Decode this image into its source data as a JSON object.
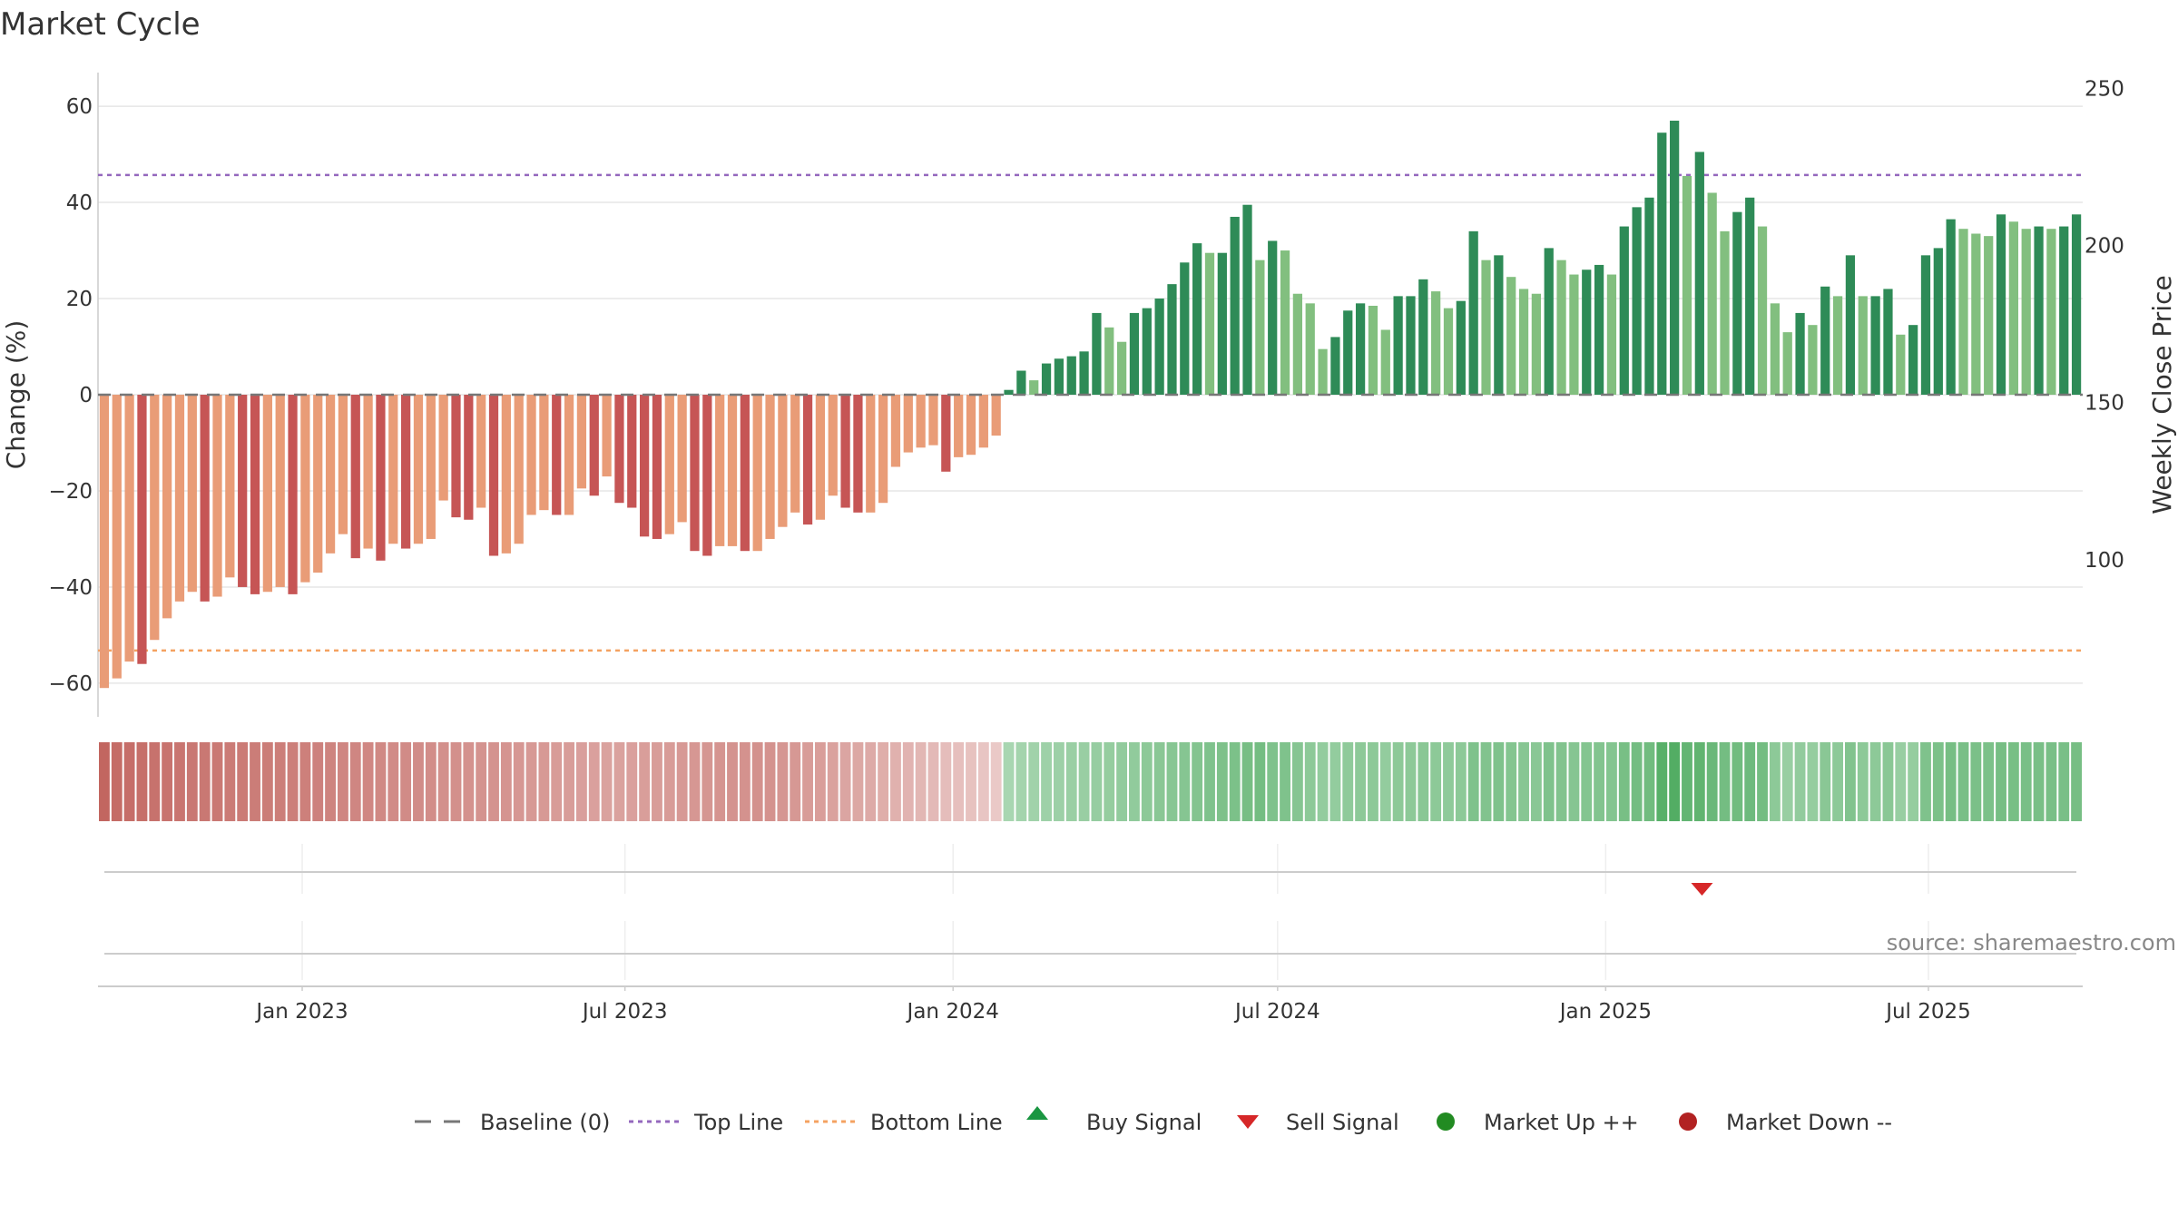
{
  "chart_data": {
    "type": "bar",
    "title": "Market Cycle",
    "ylabel": "Change (%)",
    "y2label": "Weekly Close Price",
    "ylim": [
      -67,
      67
    ],
    "y2lim": [
      50,
      255
    ],
    "yticks": [
      -60,
      -40,
      -20,
      0,
      20,
      40,
      60
    ],
    "y2ticks": [
      100,
      150,
      200,
      250
    ],
    "x_start": "2022-09-12",
    "x_end": "2025-09-22",
    "x_interval_days": 7,
    "xticks": [
      {
        "date": "2023-01-01",
        "label": "Jan 2023"
      },
      {
        "date": "2023-07-01",
        "label": "Jul 2023"
      },
      {
        "date": "2024-01-01",
        "label": "Jan 2024"
      },
      {
        "date": "2024-07-01",
        "label": "Jul 2024"
      },
      {
        "date": "2025-01-01",
        "label": "Jan 2025"
      },
      {
        "date": "2025-07-01",
        "label": "Jul 2025"
      }
    ],
    "top_line": 45.7,
    "bottom_line": -53.2,
    "grid": true,
    "legend_position": "bottom",
    "values": [
      -61,
      -59,
      -55.5,
      -56,
      -51,
      -46.5,
      -43,
      -41,
      -43,
      -42,
      -38,
      -40,
      -41.5,
      -41,
      -40,
      -41.5,
      -39,
      -37,
      -33,
      -29,
      -34,
      -32,
      -34.5,
      -31,
      -32,
      -31,
      -30,
      -22,
      -25.5,
      -26,
      -23.5,
      -33.5,
      -33,
      -31,
      -25,
      -24,
      -25,
      -25,
      -19.5,
      -21,
      -17,
      -22.5,
      -23.5,
      -29.5,
      -30,
      -29,
      -26.5,
      -32.5,
      -33.5,
      -31.5,
      -31.5,
      -32.5,
      -32.5,
      -30,
      -27.5,
      -24.5,
      -27,
      -26,
      -21,
      -23.5,
      -24.5,
      -24.5,
      -22.5,
      -15,
      -12,
      -11,
      -10.5,
      -16,
      -13,
      -12.5,
      -11,
      -8.5,
      1,
      5,
      3,
      6.5,
      7.5,
      8,
      9,
      17,
      14,
      11,
      17,
      18,
      20,
      23,
      27.5,
      31.5,
      29.5,
      29.5,
      37,
      39.5,
      28,
      32,
      30,
      21,
      19,
      9.5,
      12,
      17.5,
      19,
      18.5,
      13.5,
      20.5,
      20.5,
      24,
      21.5,
      18,
      19.5,
      34,
      28,
      29,
      24.5,
      22,
      21,
      30.5,
      28,
      25,
      26,
      27,
      25,
      35,
      39,
      41,
      54.5,
      57,
      45.5,
      50.5,
      42,
      34,
      38,
      41,
      35,
      19,
      13,
      17,
      14.5,
      22.5,
      20.5,
      29,
      20.5,
      20.5,
      22,
      12.5,
      14.5,
      29,
      30.5,
      36.5,
      34.5,
      33.5,
      33,
      37.5,
      36,
      34.5,
      35,
      34.5,
      35,
      37.5
    ],
    "price_shade": [
      0.95,
      0.9,
      0.88,
      0.87,
      0.85,
      0.84,
      0.82,
      0.8,
      0.8,
      0.79,
      0.77,
      0.77,
      0.76,
      0.76,
      0.75,
      0.74,
      0.73,
      0.72,
      0.7,
      0.68,
      0.68,
      0.67,
      0.66,
      0.64,
      0.64,
      0.63,
      0.62,
      0.6,
      0.6,
      0.58,
      0.57,
      0.57,
      0.56,
      0.54,
      0.52,
      0.52,
      0.5,
      0.49,
      0.47,
      0.46,
      0.45,
      0.45,
      0.46,
      0.48,
      0.49,
      0.5,
      0.52,
      0.54,
      0.55,
      0.56,
      0.57,
      0.58,
      0.59,
      0.58,
      0.55,
      0.53,
      0.5,
      0.48,
      0.45,
      0.42,
      0.4,
      0.38,
      0.35,
      0.32,
      0.3,
      0.27,
      0.25,
      0.22,
      0.2,
      0.18,
      0.15,
      0.12,
      0.3,
      0.33,
      0.35,
      0.37,
      0.38,
      0.4,
      0.41,
      0.43,
      0.44,
      0.46,
      0.47,
      0.5,
      0.52,
      0.54,
      0.55,
      0.57,
      0.6,
      0.61,
      0.62,
      0.66,
      0.68,
      0.6,
      0.6,
      0.55,
      0.5,
      0.45,
      0.45,
      0.48,
      0.5,
      0.5,
      0.45,
      0.5,
      0.5,
      0.52,
      0.5,
      0.48,
      0.5,
      0.6,
      0.58,
      0.6,
      0.56,
      0.54,
      0.52,
      0.6,
      0.58,
      0.55,
      0.56,
      0.57,
      0.56,
      0.65,
      0.68,
      0.7,
      0.88,
      0.92,
      0.8,
      0.82,
      0.75,
      0.68,
      0.7,
      0.72,
      0.68,
      0.5,
      0.42,
      0.46,
      0.44,
      0.52,
      0.5,
      0.58,
      0.5,
      0.5,
      0.52,
      0.42,
      0.44,
      0.6,
      0.62,
      0.66,
      0.64,
      0.63,
      0.62,
      0.66,
      0.65,
      0.64,
      0.64,
      0.64,
      0.64,
      0.66
    ],
    "signals": [
      {
        "type": "sell",
        "date": "2025-02-24"
      }
    ],
    "legend": [
      {
        "key": "baseline",
        "label": "Baseline (0)",
        "color": "#777777"
      },
      {
        "key": "top",
        "label": "Top Line",
        "color": "#9467bd"
      },
      {
        "key": "bottom",
        "label": "Bottom Line",
        "color": "#f4a261"
      },
      {
        "key": "buy",
        "label": "Buy Signal",
        "color": "#1a9641"
      },
      {
        "key": "sell",
        "label": "Sell Signal",
        "color": "#d62728"
      },
      {
        "key": "up",
        "label": "Market Up ++",
        "color": "#228b22"
      },
      {
        "key": "down",
        "label": "Market Down --",
        "color": "#b22222"
      }
    ],
    "source": "source: sharemaestro.com"
  },
  "colors": {
    "neg_dark": "#c65555",
    "neg_light": "#e99c77",
    "pos_dark": "#2e8b57",
    "pos_light": "#82bf7f",
    "heat_neg": "#c0605a",
    "heat_pos": "#48a85a",
    "grid": "#e6e6e6",
    "axis": "#cccccc"
  }
}
